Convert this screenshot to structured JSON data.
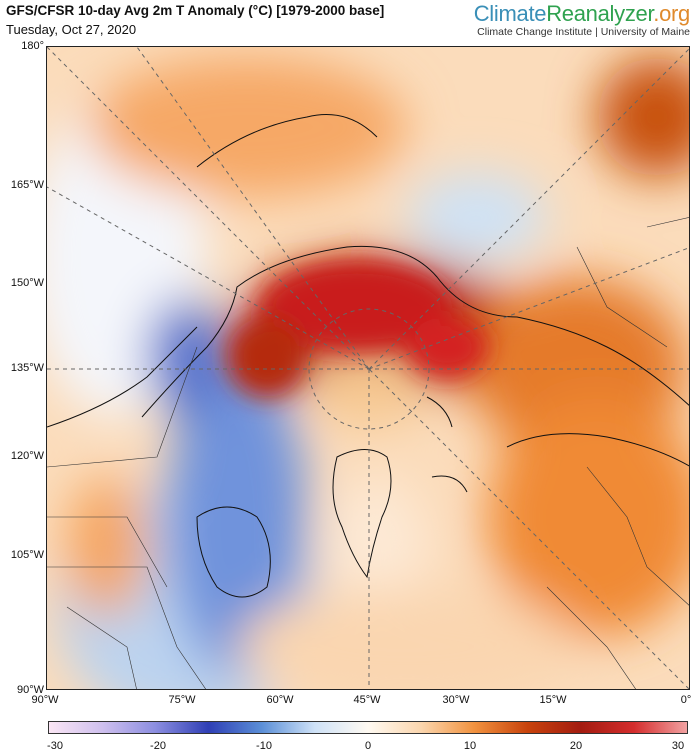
{
  "header": {
    "title": "GFS/CFSR 10-day Avg 2m T Anomaly (°C) [1979-2000 base]",
    "subtitle": "Tuesday, Oct 27, 2020",
    "brand_climate": "Climate",
    "brand_reanalyzer": "Reanalyzer",
    "brand_org": ".org",
    "brand_sub": "Climate Change Institute | University of Maine"
  },
  "map": {
    "lat_labels": [
      "180°",
      "165°W",
      "150°W",
      "135°W",
      "120°W",
      "105°W",
      "90°W"
    ],
    "lon_labels": [
      "90°W",
      "75°W",
      "60°W",
      "45°W",
      "30°W",
      "15°W",
      "0°"
    ]
  },
  "colorbar": {
    "ticks": [
      "-30",
      "-20",
      "-10",
      "0",
      "10",
      "20",
      "30"
    ],
    "min": -30,
    "max": 30,
    "colors": [
      "#fbe6f5",
      "#cfc0ee",
      "#8c8ee0",
      "#2f3fb5",
      "#5b8fd7",
      "#cfe2f7",
      "#fffaf2",
      "#fbd6ae",
      "#f1923f",
      "#c8430c",
      "#a31c10",
      "#d42d2d",
      "#f2a2a2"
    ]
  }
}
